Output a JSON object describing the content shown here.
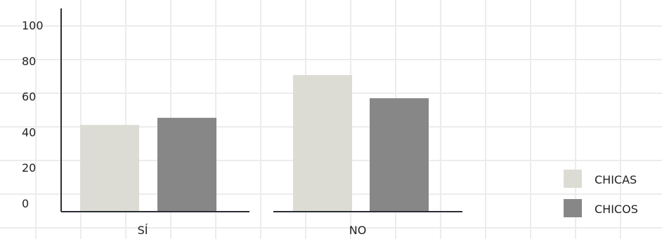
{
  "chart_data": {
    "type": "bar",
    "title": "",
    "xlabel": "",
    "ylabel": "",
    "categories": [
      "SÍ",
      "NO"
    ],
    "ylim": [
      0,
      100
    ],
    "yticks": [
      0,
      20,
      40,
      60,
      80,
      100
    ],
    "series": [
      {
        "name": "CHICAS",
        "color": "#dcdcd5",
        "values": [
          44,
          72
        ]
      },
      {
        "name": "CHICOS",
        "color": "#878787",
        "values": [
          48,
          59
        ]
      }
    ],
    "legend": "bottom-right",
    "grid": true
  }
}
